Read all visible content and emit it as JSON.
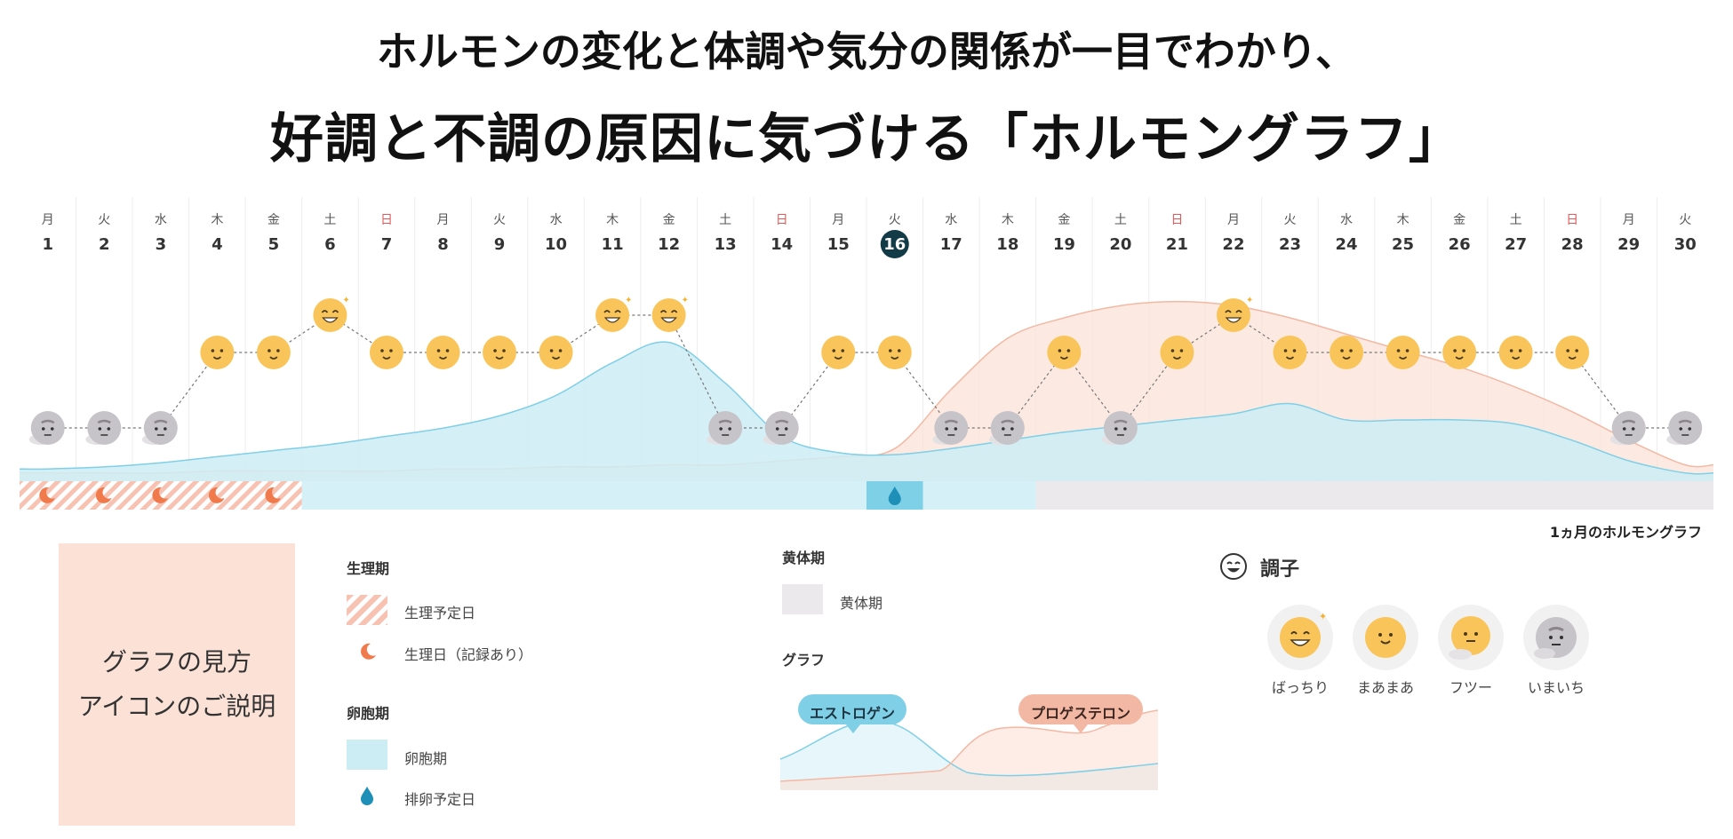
{
  "title_line1": "ホルモンの変化と体調や気分の関係が一目でわかり、",
  "title_line2": "好調と不調の原因に気づける「ホルモングラフ」",
  "caption": "1ヵ月のホルモングラフ",
  "howto": {
    "line1": "グラフの見方",
    "line2": "アイコンのご説明"
  },
  "legend": {
    "period": {
      "title": "生理期",
      "planned": "生理予定日",
      "recorded": "生理日（記録あり）"
    },
    "follicular": {
      "title": "卵胞期",
      "phase": "卵胞期",
      "ovulation": "排卵予定日"
    },
    "luteal": {
      "title": "黄体期",
      "phase": "黄体期"
    },
    "graph": {
      "title": "グラフ",
      "estrogen": "エストロゲン",
      "progesterone": "プロゲステロン"
    }
  },
  "mood": {
    "title": "調子",
    "levels": [
      "ばっちり",
      "まあまあ",
      "フツー",
      "いまいち"
    ]
  },
  "colors": {
    "estrogen_fill": "#cdedf5",
    "estrogen_line": "#7fcfe6",
    "progesterone_fill": "#fbe1d6",
    "progesterone_line": "#f3b8a3",
    "period_dot": "#f07a4c",
    "ovulation": "#1e90b8",
    "sun": "#f9c55a",
    "cloud": "#c7c4c9",
    "today": "#123a47",
    "sunday": "#e05a5a"
  },
  "chart_data": {
    "type": "area",
    "title": "1ヵ月のホルモングラフ",
    "days": [
      1,
      2,
      3,
      4,
      5,
      6,
      7,
      8,
      9,
      10,
      11,
      12,
      13,
      14,
      15,
      16,
      17,
      18,
      19,
      20,
      21,
      22,
      23,
      24,
      25,
      26,
      27,
      28,
      29,
      30
    ],
    "weekdays": [
      "月",
      "火",
      "水",
      "木",
      "金",
      "土",
      "日",
      "月",
      "火",
      "水",
      "木",
      "金",
      "土",
      "日",
      "月",
      "火",
      "水",
      "木",
      "金",
      "土",
      "日",
      "月",
      "火",
      "水",
      "木",
      "金",
      "土",
      "日",
      "月",
      "火"
    ],
    "today": 16,
    "ylim": [
      0,
      100
    ],
    "series": [
      {
        "name": "エストロゲン",
        "values": [
          6,
          7,
          9,
          12,
          15,
          18,
          22,
          26,
          32,
          42,
          58,
          68,
          48,
          22,
          14,
          13,
          16,
          20,
          24,
          27,
          30,
          33,
          38,
          30,
          30,
          30,
          28,
          20,
          10,
          4
        ]
      },
      {
        "name": "プロゲステロン",
        "values": [
          4,
          4,
          4,
          5,
          5,
          5,
          5,
          6,
          6,
          7,
          7,
          8,
          8,
          10,
          12,
          16,
          45,
          70,
          80,
          86,
          88,
          86,
          80,
          72,
          64,
          56,
          46,
          34,
          20,
          8
        ]
      }
    ],
    "moods": [
      3,
      3,
      3,
      1,
      1,
      0,
      1,
      1,
      1,
      1,
      0,
      0,
      3,
      3,
      1,
      1,
      3,
      3,
      1,
      3,
      1,
      0,
      1,
      1,
      1,
      1,
      1,
      1,
      3,
      3
    ],
    "phases": [
      {
        "name": "生理期",
        "start": 1,
        "end": 5
      },
      {
        "name": "卵胞期",
        "start": 6,
        "end": 18
      },
      {
        "name": "黄体期",
        "start": 19,
        "end": 30
      }
    ],
    "period_recorded_days": [
      1,
      2,
      3,
      4,
      5
    ],
    "ovulation_day": 16
  }
}
